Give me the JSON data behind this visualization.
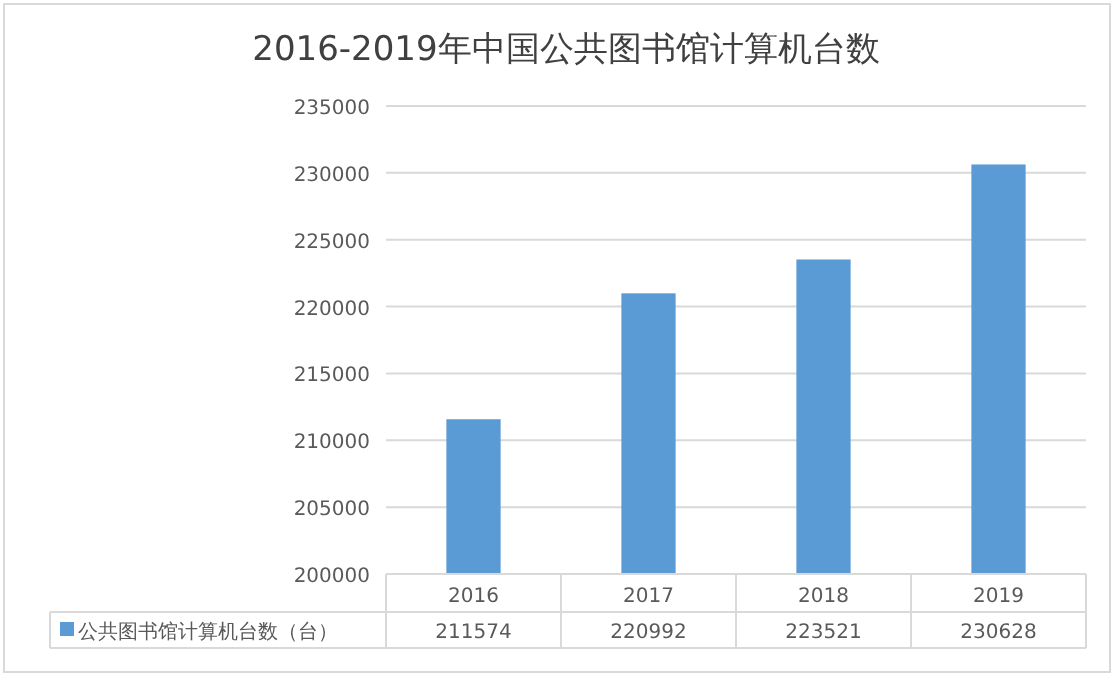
{
  "chart_data": {
    "type": "bar",
    "title": "2016-2019年中国公共图书馆计算机台数",
    "categories": [
      "2016",
      "2017",
      "2018",
      "2019"
    ],
    "series": [
      {
        "name": "公共图书馆计算机台数（台）",
        "color": "#5b9bd5",
        "values": [
          211574,
          220992,
          223521,
          230628
        ]
      }
    ],
    "ylim": [
      200000,
      235000
    ],
    "yticks": [
      200000,
      205000,
      210000,
      215000,
      220000,
      225000,
      230000,
      235000
    ],
    "grid": "y",
    "data_labels": true,
    "legend": "bottom"
  }
}
